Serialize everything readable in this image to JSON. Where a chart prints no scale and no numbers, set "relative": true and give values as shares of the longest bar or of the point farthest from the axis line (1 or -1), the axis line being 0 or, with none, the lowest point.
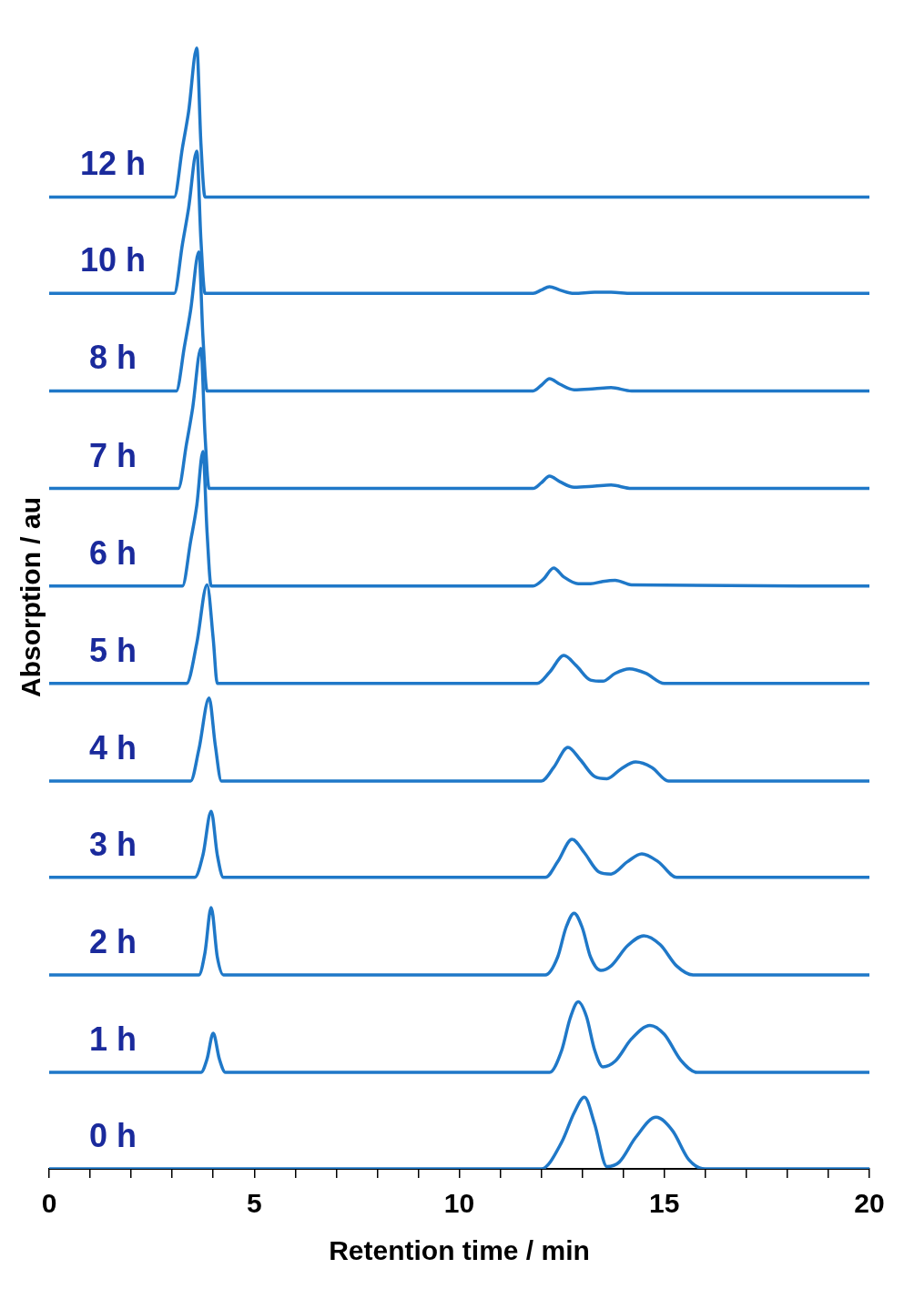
{
  "chart_data": {
    "type": "line",
    "xlabel": "Retention time / min",
    "ylabel": "Absorption / au",
    "relative": true,
    "xlim": [
      0,
      20
    ],
    "xticks": [
      0,
      {
        "value": 1,
        "label": null
      },
      {
        "value": 2,
        "label": null
      },
      {
        "value": 3,
        "label": null
      },
      {
        "value": 4,
        "label": null
      },
      5,
      {
        "value": 6,
        "label": null
      },
      {
        "value": 7,
        "label": null
      },
      {
        "value": 8,
        "label": null
      },
      {
        "value": 9,
        "label": null
      },
      10,
      {
        "value": 11,
        "label": null
      },
      {
        "value": 12,
        "label": null
      },
      {
        "value": 13,
        "label": null
      },
      {
        "value": 14,
        "label": null
      },
      15,
      {
        "value": 16,
        "label": null
      },
      {
        "value": 17,
        "label": null
      },
      {
        "value": 18,
        "label": null
      },
      {
        "value": 19,
        "label": null
      },
      20
    ],
    "grid": false,
    "legend": false,
    "tick_labels": "x",
    "marker": "none",
    "line_style": "solid",
    "series": [
      {
        "name": "0 h",
        "color": "#1f78c8",
        "x": [
          0,
          12.0,
          12.5,
          12.8,
          13.05,
          13.3,
          13.6,
          13.9,
          14.3,
          14.8,
          15.2,
          15.6,
          16.0,
          20
        ],
        "values": [
          0,
          0,
          0.024,
          0.05,
          0.064,
          0.04,
          0.002,
          0.006,
          0.028,
          0.046,
          0.034,
          0.008,
          0,
          0
        ]
      },
      {
        "name": "1 h",
        "color": "#1f78c8",
        "x": [
          0,
          3.7,
          3.85,
          4.0,
          4.15,
          4.3,
          12.2,
          12.5,
          12.7,
          12.9,
          13.1,
          13.3,
          13.5,
          13.8,
          14.2,
          14.65,
          15.0,
          15.4,
          15.8,
          20
        ],
        "values": [
          0.086,
          0.086,
          0.098,
          0.121,
          0.098,
          0.086,
          0.086,
          0.106,
          0.134,
          0.149,
          0.136,
          0.106,
          0.091,
          0.096,
          0.116,
          0.128,
          0.12,
          0.097,
          0.086,
          0.086
        ]
      },
      {
        "name": "2 h",
        "color": "#1f78c8",
        "x": [
          0,
          3.65,
          3.8,
          3.95,
          4.1,
          4.25,
          12.1,
          12.4,
          12.6,
          12.8,
          13.0,
          13.2,
          13.45,
          13.7,
          14.1,
          14.5,
          14.9,
          15.3,
          15.7,
          20
        ],
        "values": [
          0.173,
          0.173,
          0.193,
          0.233,
          0.189,
          0.173,
          0.173,
          0.189,
          0.215,
          0.228,
          0.215,
          0.189,
          0.177,
          0.181,
          0.199,
          0.208,
          0.2,
          0.181,
          0.173,
          0.173
        ]
      },
      {
        "name": "3 h",
        "color": "#1f78c8",
        "x": [
          0,
          3.55,
          3.75,
          3.95,
          4.1,
          4.25,
          12.1,
          12.4,
          12.75,
          13.05,
          13.4,
          13.7,
          14.1,
          14.45,
          14.85,
          15.3,
          20
        ],
        "values": [
          0.26,
          0.26,
          0.28,
          0.319,
          0.28,
          0.26,
          0.26,
          0.274,
          0.294,
          0.282,
          0.265,
          0.263,
          0.274,
          0.281,
          0.274,
          0.26,
          0.26
        ]
      },
      {
        "name": "4 h",
        "color": "#1f78c8",
        "x": [
          0,
          3.45,
          3.65,
          3.9,
          4.05,
          4.2,
          12.0,
          12.3,
          12.65,
          12.95,
          13.3,
          13.6,
          13.95,
          14.3,
          14.7,
          15.1,
          20
        ],
        "values": [
          0.346,
          0.346,
          0.374,
          0.42,
          0.378,
          0.346,
          0.346,
          0.358,
          0.376,
          0.365,
          0.35,
          0.348,
          0.357,
          0.363,
          0.358,
          0.346,
          0.346
        ]
      },
      {
        "name": "5 h",
        "color": "#1f78c8",
        "x": [
          0,
          3.35,
          3.6,
          3.85,
          4.0,
          4.1,
          11.9,
          12.2,
          12.55,
          12.85,
          13.2,
          13.5,
          13.8,
          14.15,
          14.55,
          15.0,
          20
        ],
        "values": [
          0.433,
          0.433,
          0.469,
          0.521,
          0.473,
          0.433,
          0.433,
          0.443,
          0.458,
          0.449,
          0.436,
          0.435,
          0.442,
          0.446,
          0.442,
          0.433,
          0.433
        ]
      },
      {
        "name": "6 h",
        "color": "#1f78c8",
        "x": [
          0,
          3.25,
          3.45,
          3.6,
          3.75,
          3.85,
          3.95,
          11.8,
          12.05,
          12.3,
          12.55,
          12.9,
          13.2,
          13.5,
          13.8,
          14.2,
          20
        ],
        "values": [
          0.52,
          0.52,
          0.56,
          0.592,
          0.64,
          0.568,
          0.52,
          0.52,
          0.526,
          0.536,
          0.528,
          0.522,
          0.522,
          0.524,
          0.525,
          0.521,
          0.52
        ]
      },
      {
        "name": "7 h",
        "color": "#1f78c8",
        "x": [
          0,
          3.15,
          3.35,
          3.5,
          3.7,
          3.8,
          3.9,
          11.8,
          12.0,
          12.2,
          12.45,
          12.8,
          13.3,
          13.7,
          14.2,
          20
        ],
        "values": [
          0.607,
          0.607,
          0.647,
          0.679,
          0.732,
          0.655,
          0.607,
          0.607,
          0.612,
          0.618,
          0.613,
          0.608,
          0.609,
          0.61,
          0.607,
          0.607
        ]
      },
      {
        "name": "8 h",
        "color": "#1f78c8",
        "x": [
          0,
          3.1,
          3.3,
          3.45,
          3.65,
          3.75,
          3.85,
          11.8,
          12.0,
          12.2,
          12.45,
          12.8,
          13.3,
          13.7,
          14.2,
          20
        ],
        "values": [
          0.694,
          0.694,
          0.734,
          0.766,
          0.818,
          0.742,
          0.694,
          0.694,
          0.699,
          0.705,
          0.7,
          0.695,
          0.696,
          0.697,
          0.694,
          0.694
        ]
      },
      {
        "name": "10 h",
        "color": "#1f78c8",
        "x": [
          0,
          3.05,
          3.25,
          3.4,
          3.6,
          3.7,
          3.8,
          11.8,
          12.0,
          12.2,
          12.45,
          12.8,
          13.3,
          13.7,
          14.2,
          20
        ],
        "values": [
          0.781,
          0.781,
          0.825,
          0.857,
          0.908,
          0.829,
          0.781,
          0.781,
          0.784,
          0.787,
          0.784,
          0.781,
          0.782,
          0.782,
          0.781,
          0.781
        ]
      },
      {
        "name": "12 h",
        "color": "#1f78c8",
        "x": [
          0,
          3.05,
          3.25,
          3.4,
          3.6,
          3.7,
          3.8,
          20
        ],
        "values": [
          0.867,
          0.867,
          0.911,
          0.943,
          1,
          0.915,
          0.867,
          0.867
        ]
      }
    ]
  }
}
